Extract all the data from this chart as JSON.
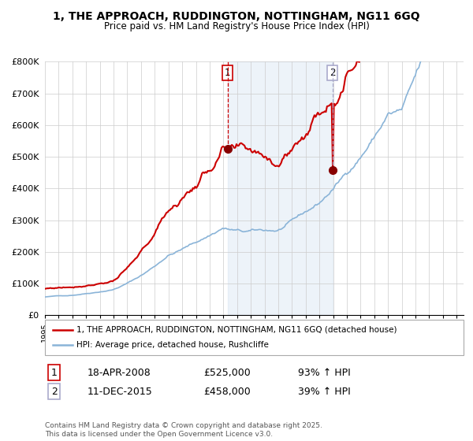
{
  "title_line1": "1, THE APPROACH, RUDDINGTON, NOTTINGHAM, NG11 6GQ",
  "title_line2": "Price paid vs. HM Land Registry's House Price Index (HPI)",
  "ylim": [
    0,
    800000
  ],
  "yticks": [
    0,
    100000,
    200000,
    300000,
    400000,
    500000,
    600000,
    700000,
    800000
  ],
  "ytick_labels": [
    "£0",
    "£100K",
    "£200K",
    "£300K",
    "£400K",
    "£500K",
    "£600K",
    "£700K",
    "£800K"
  ],
  "line1_color": "#cc0000",
  "line2_color": "#8ab4d8",
  "point1_date_num": 2008.3,
  "point1_value": 525000,
  "point1_hpi_value": 272000,
  "point1_label": "1",
  "point2_date_num": 2015.94,
  "point2_value": 458000,
  "point2_hpi_value": 330000,
  "point2_label": "2",
  "vline1_color": "#cc0000",
  "vline2_color": "#aaaacc",
  "shade_color": "#ccddf0",
  "shade_alpha": 0.35,
  "legend_line1": "1, THE APPROACH, RUDDINGTON, NOTTINGHAM, NG11 6GQ (detached house)",
  "legend_line2": "HPI: Average price, detached house, Rushcliffe",
  "table_row1": [
    "1",
    "18-APR-2008",
    "£525,000",
    "93% ↑ HPI"
  ],
  "table_row2": [
    "2",
    "11-DEC-2015",
    "£458,000",
    "39% ↑ HPI"
  ],
  "footnote": "Contains HM Land Registry data © Crown copyright and database right 2025.\nThis data is licensed under the Open Government Licence v3.0.",
  "background_color": "#ffffff",
  "plot_bg_color": "#ffffff",
  "grid_color": "#cccccc",
  "xstart": 1995,
  "xend": 2025.5
}
